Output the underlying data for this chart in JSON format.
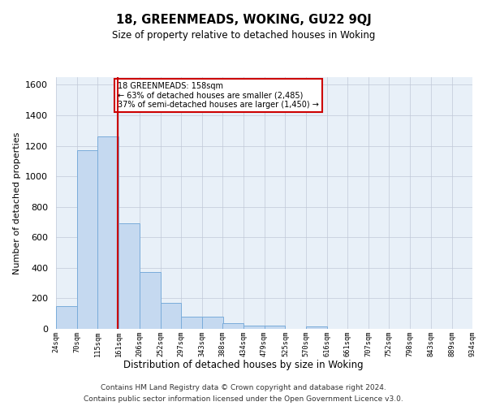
{
  "title": "18, GREENMEADS, WOKING, GU22 9QJ",
  "subtitle": "Size of property relative to detached houses in Woking",
  "xlabel": "Distribution of detached houses by size in Woking",
  "ylabel": "Number of detached properties",
  "bin_edges": [
    24,
    70,
    115,
    161,
    206,
    252,
    297,
    343,
    388,
    434,
    479,
    525,
    570,
    616,
    661,
    707,
    752,
    798,
    843,
    889,
    934
  ],
  "bar_heights": [
    150,
    1170,
    1260,
    690,
    375,
    170,
    80,
    80,
    35,
    20,
    20,
    0,
    15,
    0,
    0,
    0,
    0,
    0,
    0,
    0
  ],
  "bar_color": "#c5d9f0",
  "bar_edgecolor": "#7aacda",
  "vline_x": 158,
  "vline_color": "#cc0000",
  "ylim": [
    0,
    1650
  ],
  "yticks": [
    0,
    200,
    400,
    600,
    800,
    1000,
    1200,
    1400,
    1600
  ],
  "annotation_text": "18 GREENMEADS: 158sqm\n← 63% of detached houses are smaller (2,485)\n37% of semi-detached houses are larger (1,450) →",
  "annotation_box_color": "#cc0000",
  "background_color": "#ffffff",
  "plot_bg_color": "#e8f0f8",
  "grid_color": "#c0c8d8",
  "footer_line1": "Contains HM Land Registry data © Crown copyright and database right 2024.",
  "footer_line2": "Contains public sector information licensed under the Open Government Licence v3.0."
}
